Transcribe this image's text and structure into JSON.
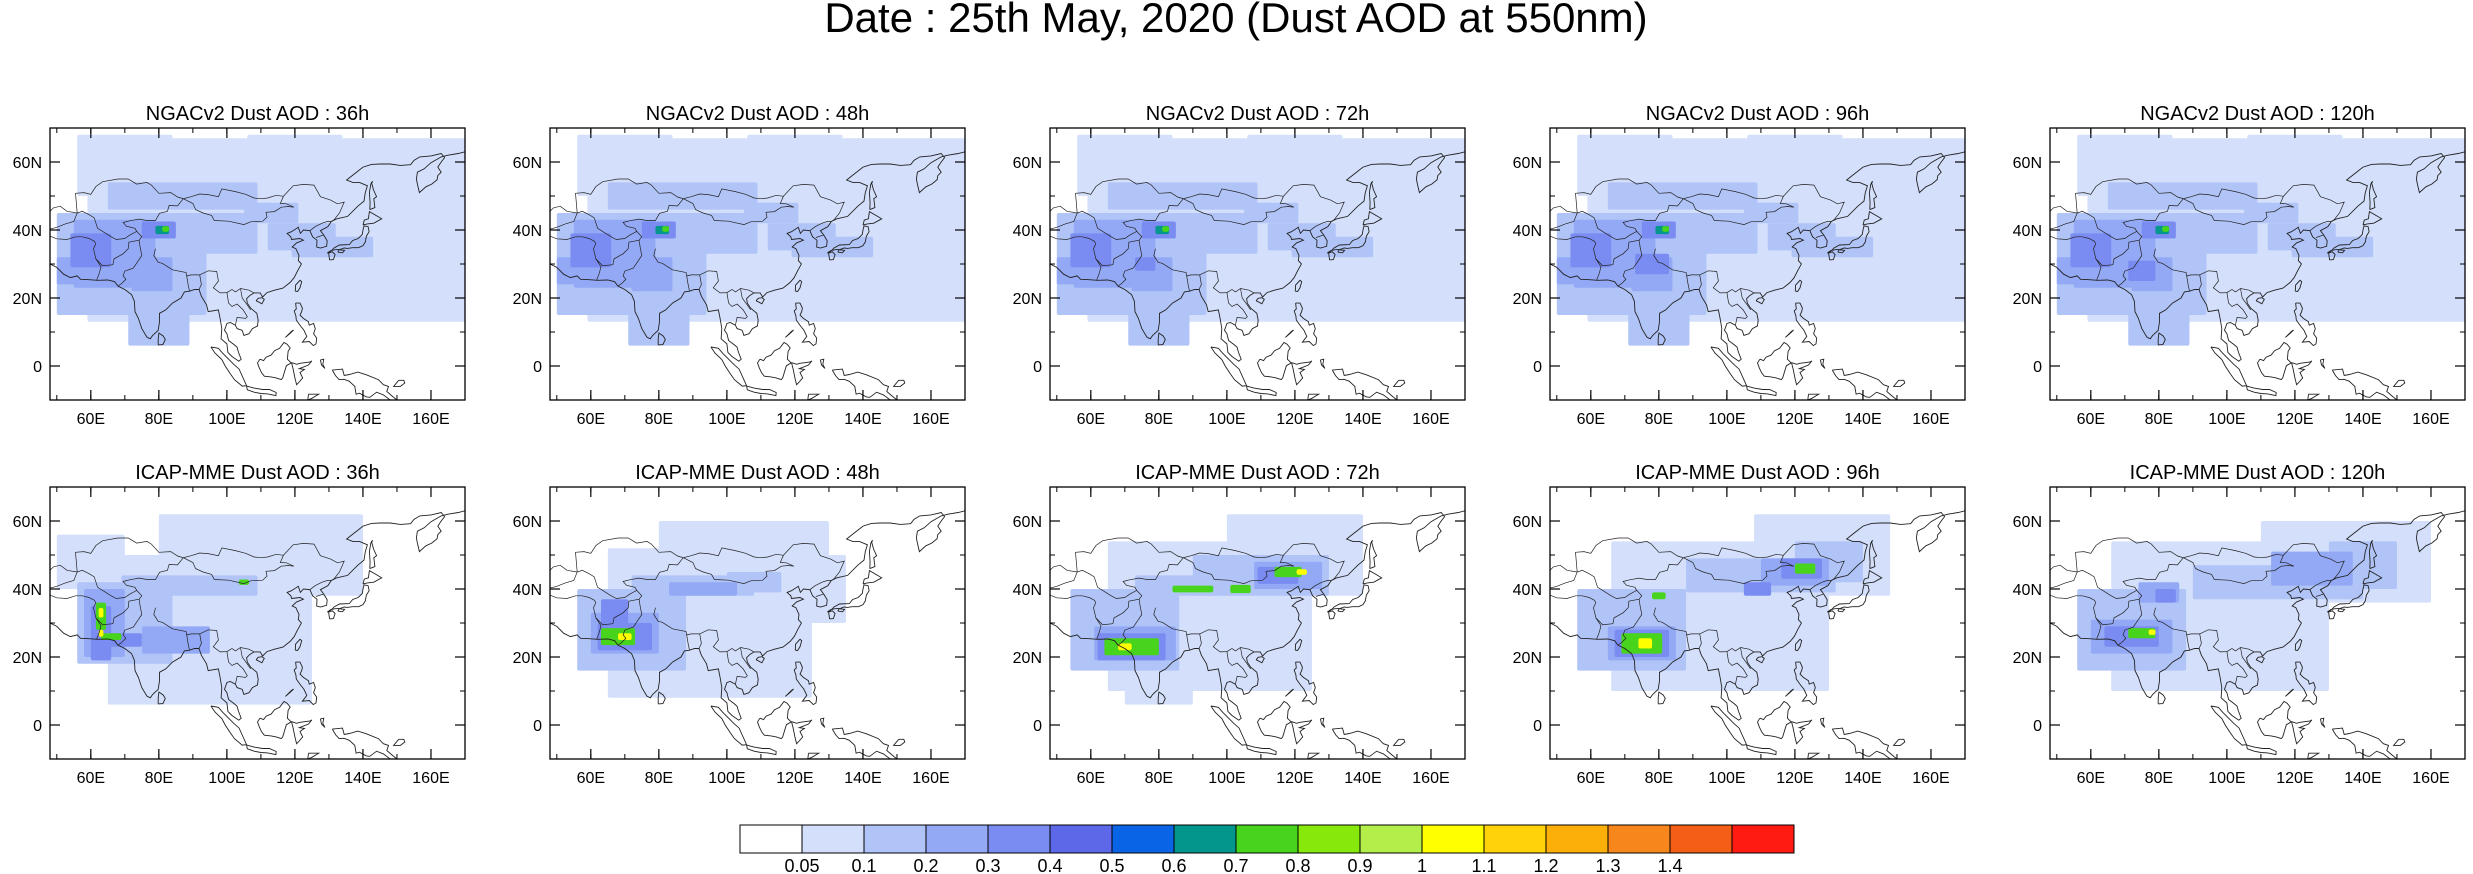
{
  "figure": {
    "title": "Date : 25th May, 2020 (Dust AOD at 550nm)"
  },
  "panel_grid": {
    "rows": [
      {
        "model": "NGACv2",
        "panels": [
          {
            "title": "NGACv2 Dust AOD : 36h",
            "lead_hours": 36
          },
          {
            "title": "NGACv2 Dust AOD : 48h",
            "lead_hours": 48
          },
          {
            "title": "NGACv2 Dust AOD : 72h",
            "lead_hours": 72
          },
          {
            "title": "NGACv2 Dust AOD : 96h",
            "lead_hours": 96
          },
          {
            "title": "NGACv2 Dust AOD : 120h",
            "lead_hours": 120
          }
        ]
      },
      {
        "model": "ICAP-MME",
        "panels": [
          {
            "title": "ICAP-MME Dust AOD : 36h",
            "lead_hours": 36
          },
          {
            "title": "ICAP-MME Dust AOD : 48h",
            "lead_hours": 48
          },
          {
            "title": "ICAP-MME Dust AOD : 72h",
            "lead_hours": 72
          },
          {
            "title": "ICAP-MME Dust AOD : 96h",
            "lead_hours": 96
          },
          {
            "title": "ICAP-MME Dust AOD : 120h",
            "lead_hours": 120
          }
        ]
      }
    ]
  },
  "map_axes": {
    "lon_range": [
      48,
      170
    ],
    "lat_range": [
      -10,
      70
    ],
    "x_ticks": [
      {
        "value": 60,
        "label": "60E"
      },
      {
        "value": 80,
        "label": "80E"
      },
      {
        "value": 100,
        "label": "100E"
      },
      {
        "value": 120,
        "label": "120E"
      },
      {
        "value": 140,
        "label": "140E"
      },
      {
        "value": 160,
        "label": "160E"
      }
    ],
    "y_ticks": [
      {
        "value": 0,
        "label": "0"
      },
      {
        "value": 20,
        "label": "20N"
      },
      {
        "value": 40,
        "label": "40N"
      },
      {
        "value": 60,
        "label": "60N"
      }
    ]
  },
  "colorbar": {
    "colors": [
      "#ffffff",
      "#d3dffb",
      "#b1c4f7",
      "#93a9f5",
      "#7a8cf2",
      "#5c68e8",
      "#0a64e6",
      "#03968c",
      "#48d31c",
      "#86e80b",
      "#b4ee4a",
      "#ffff00",
      "#ffd20a",
      "#fcae09",
      "#f7871d",
      "#f45e16",
      "#ff1a12"
    ],
    "boundaries": [
      "0.05",
      "0.1",
      "0.2",
      "0.3",
      "0.4",
      "0.5",
      "0.6",
      "0.7",
      "0.8",
      "0.9",
      "1",
      "1.1",
      "1.2",
      "1.3",
      "1.4"
    ]
  },
  "theme": {
    "coastline": "#222222",
    "frame": "#000000"
  }
}
